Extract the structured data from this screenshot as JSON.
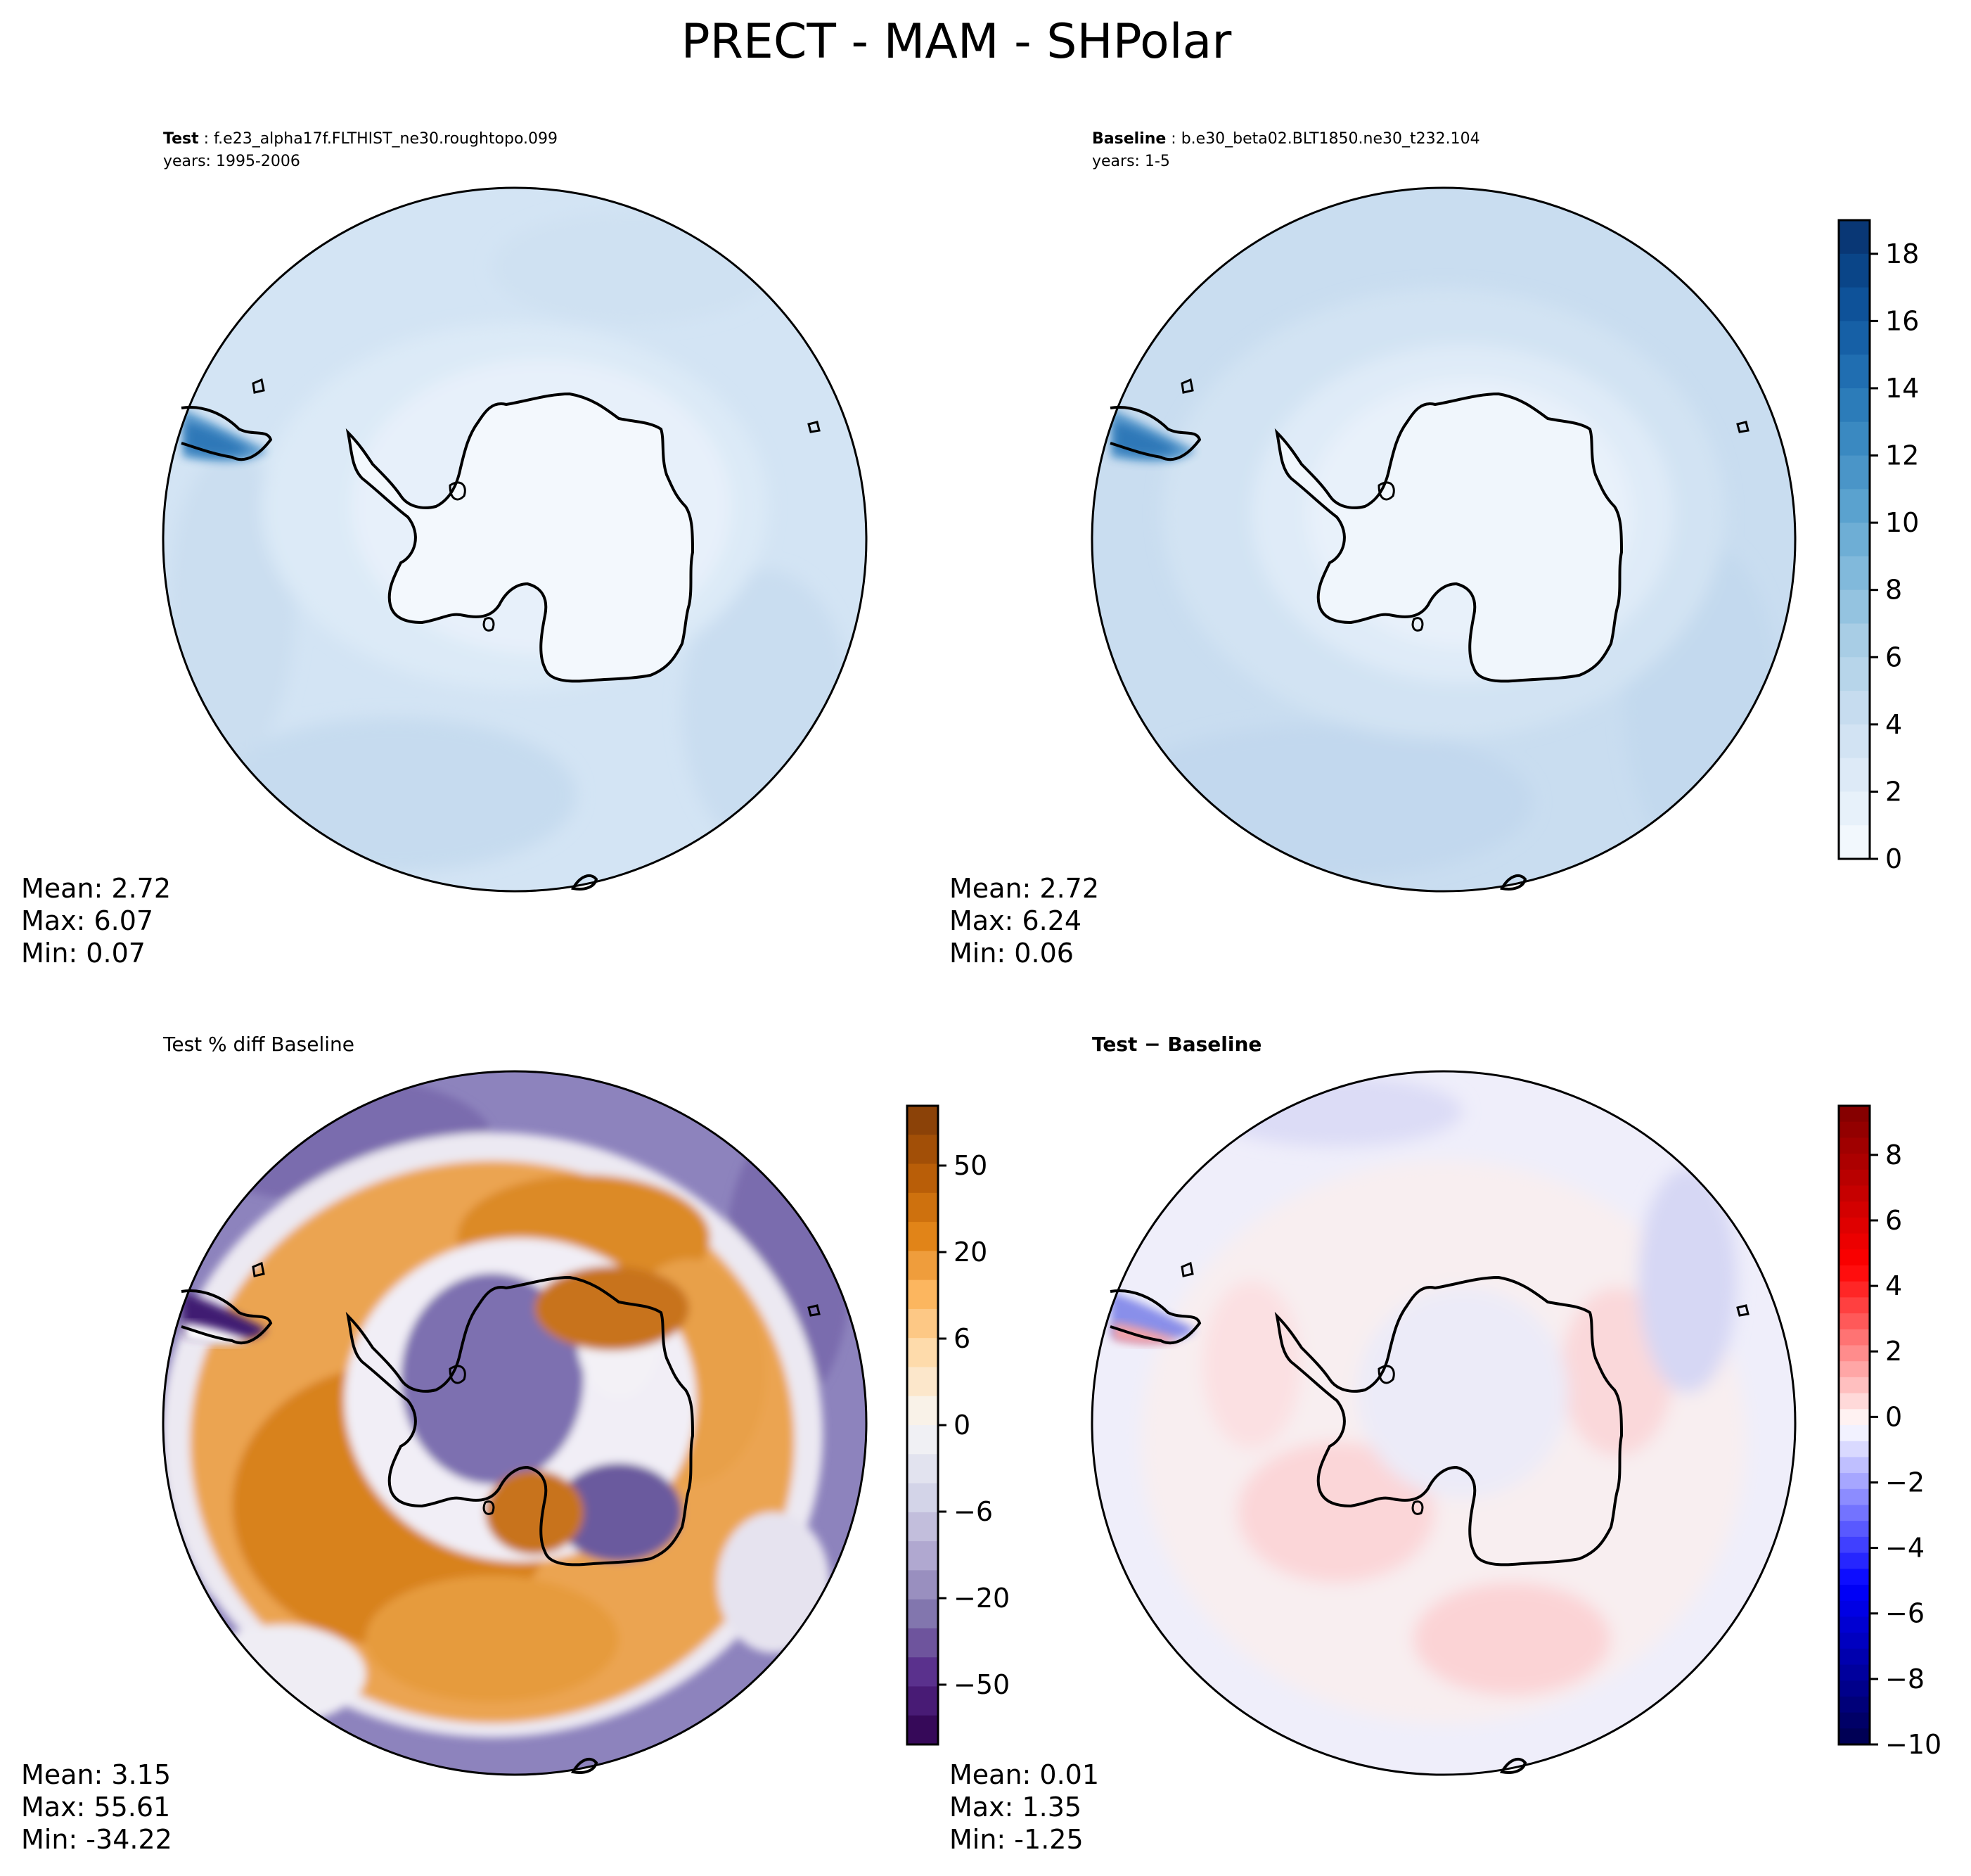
{
  "figure": {
    "title": "PRECT - MAM - SHPolar"
  },
  "panels": [
    {
      "id": "test",
      "header_bold": "Test",
      "header_rest": " : f.e23_alpha17f.FLTHIST_ne30.roughtopo.099",
      "header_line2": "years: 1995-2006",
      "colormap": "Blues",
      "stats": {
        "mean": "Mean:  2.72",
        "max": "Max:  6.07",
        "min": "Min:  0.07"
      }
    },
    {
      "id": "baseline",
      "header_bold": "Baseline",
      "header_rest": " : b.e30_beta02.BLT1850.ne30_t232.104",
      "header_line2": "years: 1-5",
      "colormap": "Blues",
      "stats": {
        "mean": "Mean:  2.72",
        "max": "Max:  6.24",
        "min": "Min:  0.06"
      }
    },
    {
      "id": "pct-diff",
      "header_plain": "Test % diff Baseline",
      "colormap": "PuOr",
      "stats": {
        "mean": "Mean:  3.15",
        "max": "Max: 55.61",
        "min": "Min: -34.22"
      }
    },
    {
      "id": "diff",
      "header_bold": "Test − Baseline",
      "colormap": "seismic",
      "stats": {
        "mean": "Mean:  0.01",
        "max": "Max:  1.35",
        "min": "Min: -1.25"
      }
    }
  ],
  "colorbars": [
    {
      "id": "cb-main",
      "ticks": [
        "0",
        "2",
        "4",
        "6",
        "8",
        "10",
        "12",
        "14",
        "16",
        "18"
      ],
      "range": [
        0,
        19
      ],
      "levels": 19,
      "colors": [
        "#f7fbff",
        "#e1edf8",
        "#cadef0",
        "#abcfe6",
        "#82badb",
        "#59a1cf",
        "#3787c0",
        "#1c6aaf",
        "#0b4d94",
        "#08306b"
      ]
    },
    {
      "id": "cb-pct",
      "ticks": [
        "50",
        "20",
        "6",
        "0",
        "−6",
        "−20",
        "−50"
      ],
      "scale": "symlog",
      "colors": [
        "#2d004b",
        "#542788",
        "#8073ac",
        "#b2abd2",
        "#d8daeb",
        "#f7f7f7",
        "#fee0b6",
        "#fdb863",
        "#e08214",
        "#b35806",
        "#7f3b08"
      ]
    },
    {
      "id": "cb-diff",
      "ticks": [
        "8",
        "6",
        "4",
        "2",
        "0",
        "−2",
        "−4",
        "−6",
        "−8",
        "−10"
      ],
      "range": [
        -10,
        9.5
      ],
      "colors": [
        "#00004c",
        "#0000ff",
        "#ffffff",
        "#ff0000",
        "#800000"
      ]
    }
  ],
  "map_colors": {
    "test": {
      "land": "#eef5fc",
      "ocean": "#d2e3f3",
      "ocean_dark": "#c6dbef"
    },
    "baseline": {
      "land": "#eaf2fb",
      "ocean": "#cfe0f2",
      "ocean_dark": "#c2d8ee"
    },
    "pct-diff": {
      "orange": "#e69b3c",
      "orange_dark": "#d07a1c",
      "purple": "#8c80ba",
      "purple_dark": "#6a5a9e",
      "white": "#f3f1f6"
    },
    "diff": {
      "base": "#f6f2f6",
      "pink": "#fbd9da",
      "lavender": "#dcdcf6"
    }
  }
}
